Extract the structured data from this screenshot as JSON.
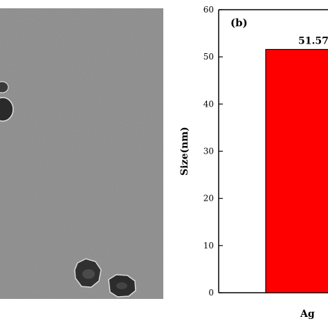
{
  "figure": {
    "panel_label": "(b)"
  },
  "tem_image": {
    "background_color": "#8c8c8c",
    "particle_color": "#2e2e2e"
  },
  "chart_data": {
    "type": "bar",
    "categories": [
      "Ag"
    ],
    "values": [
      51.57
    ],
    "value_labels": [
      "51.57"
    ],
    "title": "",
    "xlabel": "",
    "ylabel": "Size(nm)",
    "ylim": [
      0,
      60
    ],
    "yticks": [
      0,
      10,
      20,
      30,
      40,
      50,
      60
    ],
    "bar_color": "#ff0000",
    "grid": false,
    "legend": "none"
  }
}
